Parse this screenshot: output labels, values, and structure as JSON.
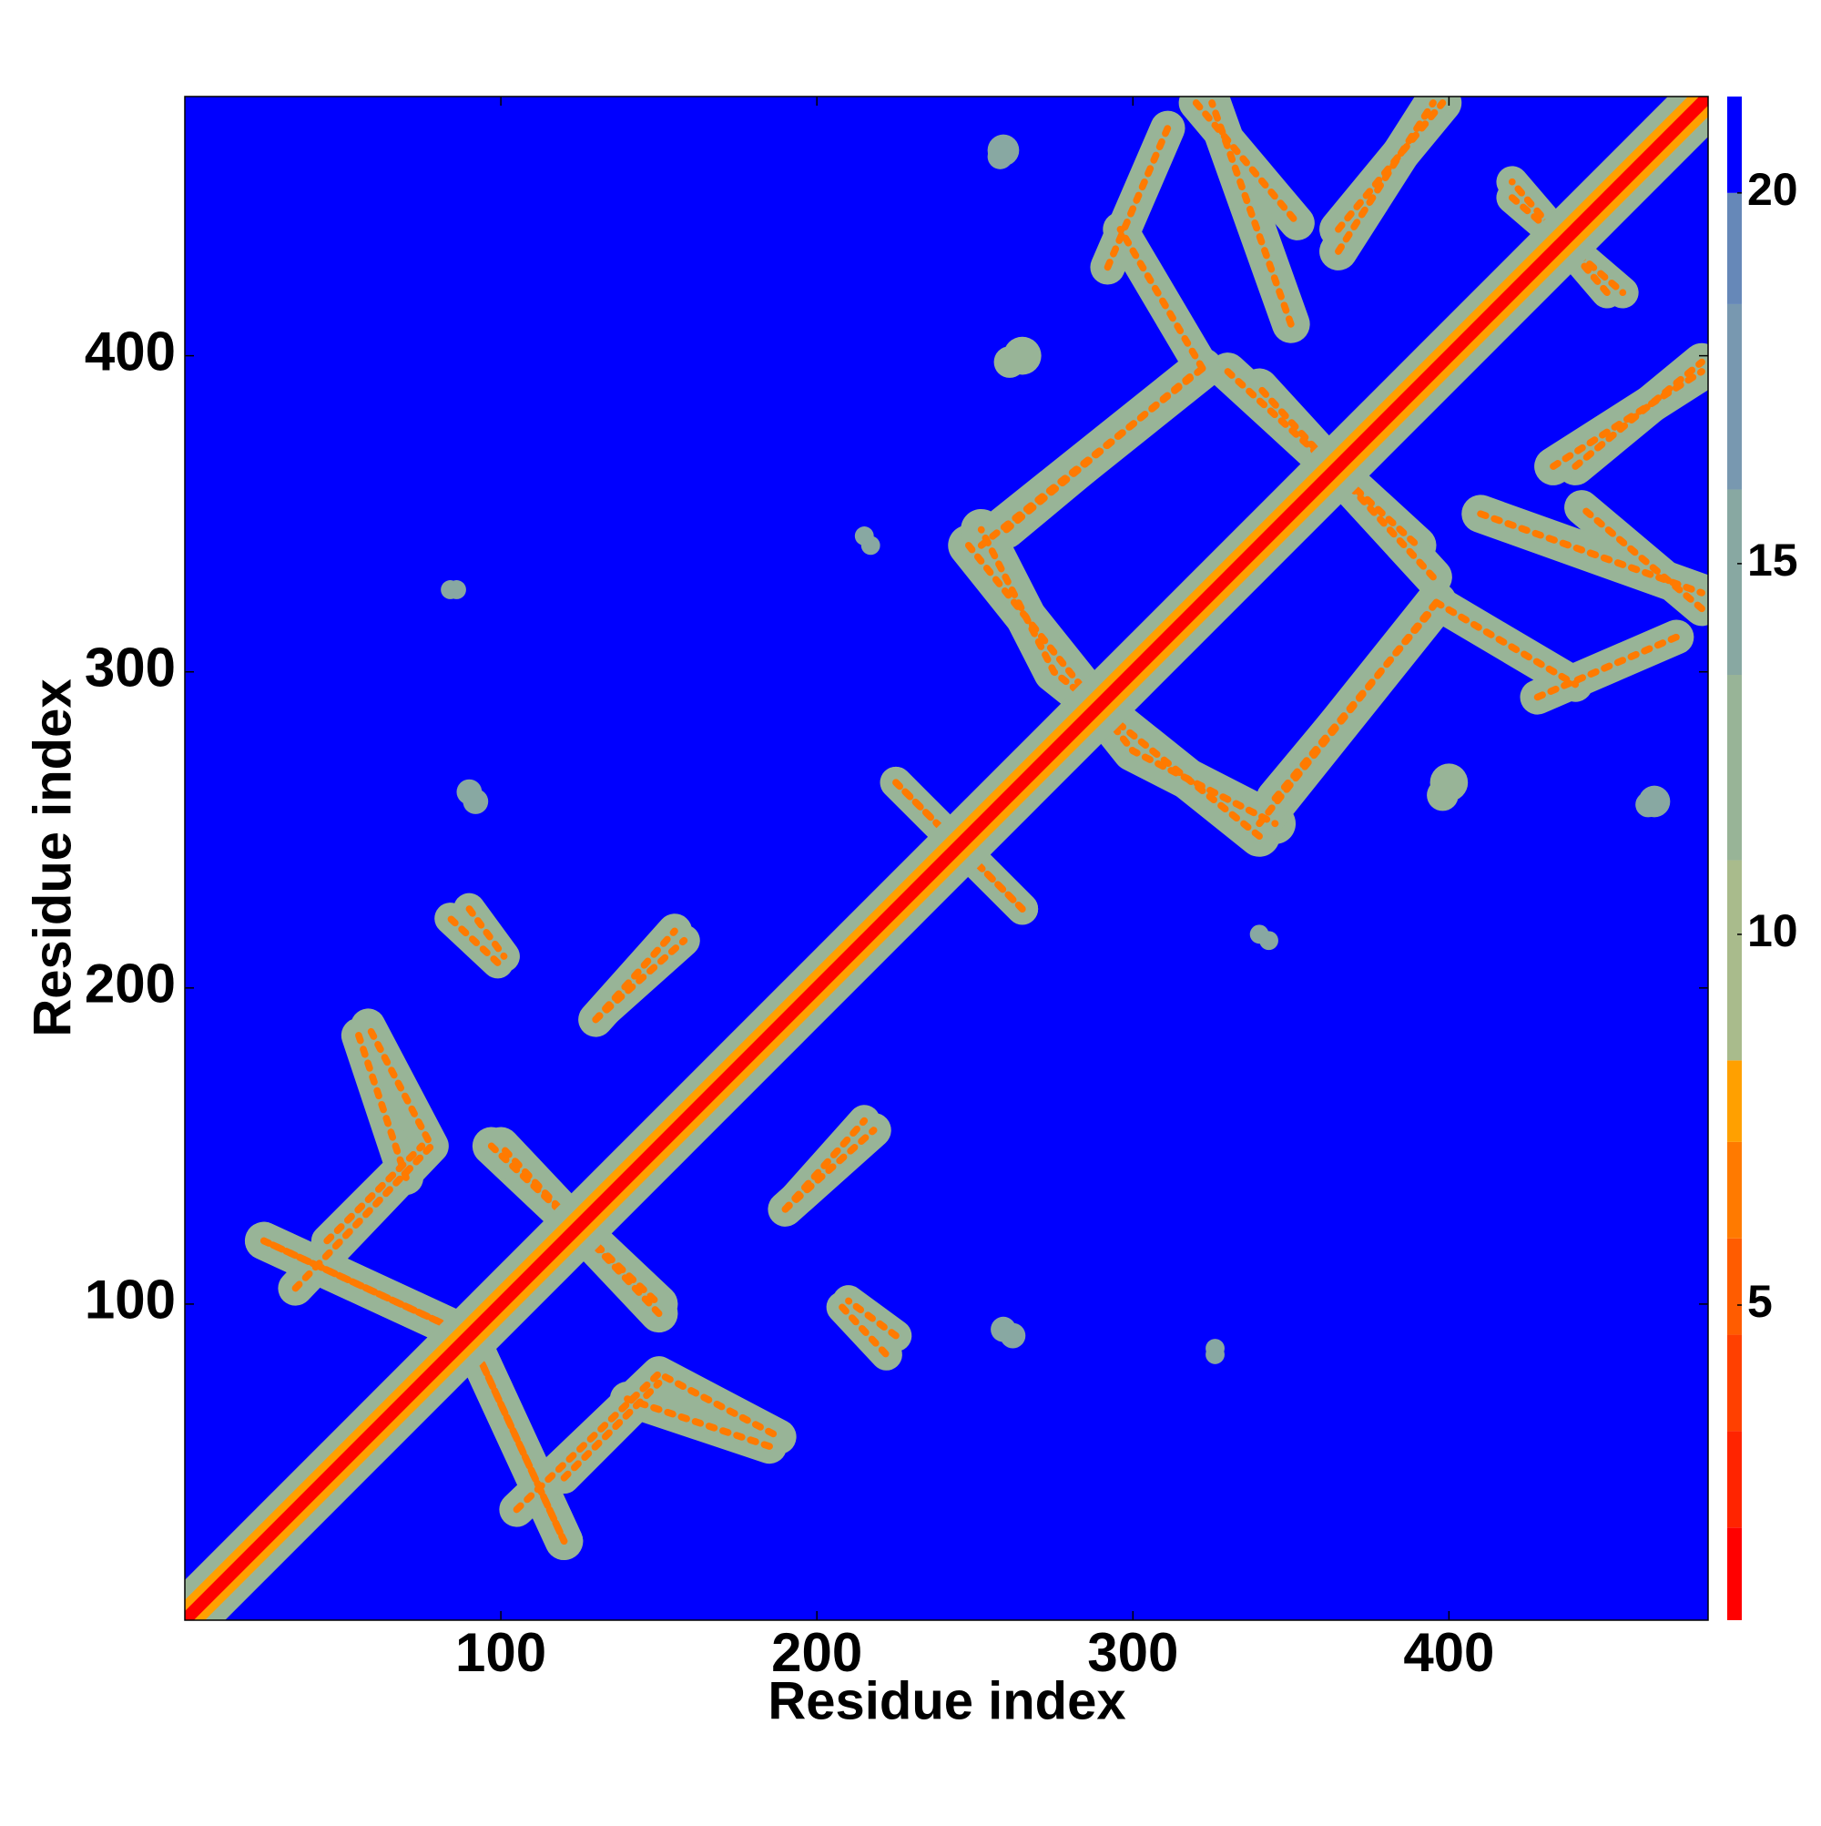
{
  "chart_data": {
    "type": "heatmap",
    "xlabel": "Residue index",
    "ylabel": "Residue index",
    "xlim": [
      0,
      482
    ],
    "ylim": [
      0,
      482
    ],
    "xticks": [
      100,
      200,
      300,
      400
    ],
    "yticks": [
      100,
      200,
      300,
      400
    ],
    "colorlim": [
      0.75,
      21.3
    ],
    "colorticks": [
      5,
      10,
      15,
      20
    ],
    "colorscale": [
      {
        "value": 0.75,
        "color": "#ff0000"
      },
      {
        "value": 2.0,
        "color": "#ff2400"
      },
      {
        "value": 3.3,
        "color": "#ff4000"
      },
      {
        "value": 4.6,
        "color": "#ff5c00"
      },
      {
        "value": 5.9,
        "color": "#ff7a00"
      },
      {
        "value": 7.2,
        "color": "#ffa000"
      },
      {
        "value": 8.3,
        "color": "#a9bb8c"
      },
      {
        "value": 11.0,
        "color": "#98b497"
      },
      {
        "value": 13.5,
        "color": "#88a8a2"
      },
      {
        "value": 16.0,
        "color": "#7898b0"
      },
      {
        "value": 18.5,
        "color": "#6688b8"
      },
      {
        "value": 20.0,
        "color": "#0000ff"
      }
    ],
    "background_value": 21,
    "symmetric": true,
    "diagonal": [
      {
        "width": 18,
        "value": 12
      },
      {
        "width": 9,
        "value": 7.5
      },
      {
        "width": 4,
        "value": 1.5
      }
    ],
    "features": [
      {
        "points": [
          [
            25,
            120
          ],
          [
            90,
            90
          ],
          [
            120,
            25
          ]
        ],
        "width": 12,
        "value": 11,
        "peak": 6.5
      },
      {
        "points": [
          [
            55,
            185
          ],
          [
            70,
            140
          ]
        ],
        "width": 11,
        "value": 11,
        "peak": 6.5
      },
      {
        "points": [
          [
            45,
            120
          ],
          [
            75,
            150
          ]
        ],
        "width": 10,
        "value": 11,
        "peak": 6.5
      },
      {
        "points": [
          [
            97,
            150
          ],
          [
            150,
            100
          ]
        ],
        "width": 12,
        "value": 11,
        "peak": 6.5
      },
      {
        "points": [
          [
            130,
            190
          ],
          [
            155,
            218
          ]
        ],
        "width": 11,
        "value": 11,
        "peak": 6.5
      },
      {
        "points": [
          [
            90,
            225
          ],
          [
            101,
            210
          ]
        ],
        "width": 10,
        "value": 11,
        "peak": 6.5
      },
      {
        "points": [
          [
            105,
            35
          ],
          [
            150,
            78
          ],
          [
            188,
            58
          ]
        ],
        "width": 11,
        "value": 11,
        "peak": 6.5
      },
      {
        "points": [
          [
            190,
            130
          ],
          [
            215,
            158
          ]
        ],
        "width": 10,
        "value": 11,
        "peak": 6.5
      },
      {
        "points": [
          [
            208,
            99
          ],
          [
            222,
            84
          ]
        ],
        "width": 10,
        "value": 11,
        "peak": 6.5
      },
      {
        "points": [
          [
            225,
            265
          ],
          [
            265,
            225
          ]
        ],
        "width": 10,
        "value": 11,
        "peak": 6.5
      },
      {
        "points": [
          [
            248,
            340
          ],
          [
            300,
            275
          ],
          [
            345,
            252
          ]
        ],
        "width": 13,
        "value": 11,
        "peak": 6.5
      },
      {
        "points": [
          [
            340,
            252
          ],
          [
            396,
            322
          ]
        ],
        "width": 13,
        "value": 11,
        "peak": 6.5
      },
      {
        "points": [
          [
            260,
            345
          ],
          [
            320,
            395
          ]
        ],
        "width": 12,
        "value": 11,
        "peak": 6.5
      },
      {
        "points": [
          [
            330,
            395
          ],
          [
            390,
            340
          ]
        ],
        "width": 12,
        "value": 11,
        "peak": 6.5
      },
      {
        "points": [
          [
            292,
            428
          ],
          [
            311,
            472
          ]
        ],
        "width": 11,
        "value": 11,
        "peak": 6.5
      },
      {
        "points": [
          [
            320,
            480
          ],
          [
            352,
            442
          ]
        ],
        "width": 11,
        "value": 11,
        "peak": 6.5
      },
      {
        "points": [
          [
            365,
            440
          ],
          [
            398,
            480
          ]
        ],
        "width": 12,
        "value": 11,
        "peak": 6.5
      },
      {
        "points": [
          [
            433,
            365
          ],
          [
            480,
            395
          ]
        ],
        "width": 12,
        "value": 11,
        "peak": 6.5
      },
      {
        "points": [
          [
            410,
            350
          ],
          [
            480,
            325
          ]
        ],
        "width": 12,
        "value": 11,
        "peak": 6.5
      },
      {
        "points": [
          [
            396,
            322
          ],
          [
            440,
            296
          ]
        ],
        "width": 11,
        "value": 11,
        "peak": 6.5
      },
      {
        "points": [
          [
            420,
            450
          ],
          [
            455,
            420
          ]
        ],
        "width": 10,
        "value": 11,
        "peak": 6.5
      }
    ],
    "blobs": [
      {
        "x": 400,
        "y": 265,
        "r": 6,
        "value": 12
      },
      {
        "x": 259,
        "y": 465,
        "r": 5,
        "value": 15
      },
      {
        "x": 261,
        "y": 398,
        "r": 5,
        "value": 13
      },
      {
        "x": 215,
        "y": 343,
        "r": 3,
        "value": 15
      },
      {
        "x": 84,
        "y": 326,
        "r": 3,
        "value": 15
      },
      {
        "x": 90,
        "y": 262,
        "r": 4,
        "value": 15
      },
      {
        "x": 259,
        "y": 92,
        "r": 4,
        "value": 15
      },
      {
        "x": 326,
        "y": 86,
        "r": 3,
        "value": 15
      },
      {
        "x": 340,
        "y": 217,
        "r": 3,
        "value": 15
      },
      {
        "x": 463,
        "y": 258,
        "r": 4,
        "value": 15
      }
    ]
  }
}
